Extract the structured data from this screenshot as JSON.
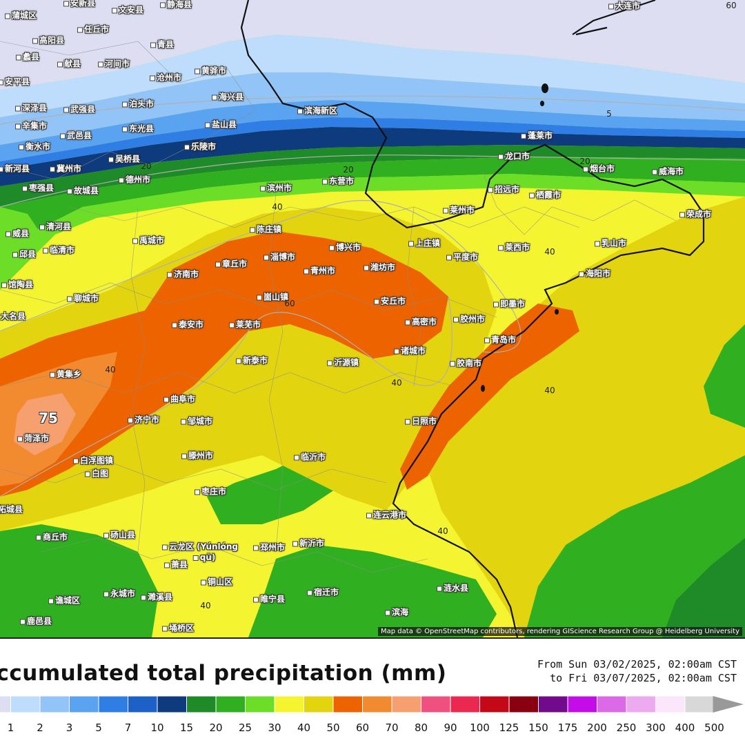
{
  "map": {
    "attribution": "Map data © OpenStreetMap contributors, rendering GIScience Research Group @ Heidelberg University",
    "max_label": "75",
    "cities": [
      {
        "name": "安新县"
      },
      {
        "name": "文安县"
      },
      {
        "name": "静海县"
      },
      {
        "name": "大连市"
      },
      {
        "name": "蒲城区"
      },
      {
        "name": "任丘市"
      },
      {
        "name": "高阳县"
      },
      {
        "name": "青县"
      },
      {
        "name": "蠡县"
      },
      {
        "name": "献县"
      },
      {
        "name": "河间市"
      },
      {
        "name": "黄骅市"
      },
      {
        "name": "安平县"
      },
      {
        "name": "沧州市"
      },
      {
        "name": "海兴县"
      },
      {
        "name": "深泽县"
      },
      {
        "name": "武强县"
      },
      {
        "name": "泊头市"
      },
      {
        "name": "辛集市"
      },
      {
        "name": "武邑县"
      },
      {
        "name": "东光县"
      },
      {
        "name": "盐山县"
      },
      {
        "name": "滨海新区"
      },
      {
        "name": "蓬莱市"
      },
      {
        "name": "衡水市"
      },
      {
        "name": "乐陵市"
      },
      {
        "name": "龙口市"
      },
      {
        "name": "吴桥县"
      },
      {
        "name": "新河县"
      },
      {
        "name": "冀州市"
      },
      {
        "name": "烟台市"
      },
      {
        "name": "威海市"
      },
      {
        "name": "枣强县"
      },
      {
        "name": "德州市"
      },
      {
        "name": "故城县"
      },
      {
        "name": "滨州市"
      },
      {
        "name": "东营市"
      },
      {
        "name": "招远市"
      },
      {
        "name": "栖霞市"
      },
      {
        "name": "莱州市"
      },
      {
        "name": "荣成市"
      },
      {
        "name": "威县"
      },
      {
        "name": "清河县"
      },
      {
        "name": "陈庄镇"
      },
      {
        "name": "邱县"
      },
      {
        "name": "临清市"
      },
      {
        "name": "禹城市"
      },
      {
        "name": "博兴市"
      },
      {
        "name": "上庄镇"
      },
      {
        "name": "莱西市"
      },
      {
        "name": "乳山市"
      },
      {
        "name": "济南市"
      },
      {
        "name": "章丘市"
      },
      {
        "name": "淄博市"
      },
      {
        "name": "青州市"
      },
      {
        "name": "潍坊市"
      },
      {
        "name": "平度市"
      },
      {
        "name": "馆陶县"
      },
      {
        "name": "海阳市"
      },
      {
        "name": "聊城市"
      },
      {
        "name": "崮山镇"
      },
      {
        "name": "安丘市"
      },
      {
        "name": "即墨市"
      },
      {
        "name": "大名县"
      },
      {
        "name": "泰安市"
      },
      {
        "name": "莱芜市"
      },
      {
        "name": "高密市"
      },
      {
        "name": "胶州市"
      },
      {
        "name": "青岛市"
      },
      {
        "name": "新泰市"
      },
      {
        "name": "沂源镇"
      },
      {
        "name": "诸城市"
      },
      {
        "name": "黄集乡"
      },
      {
        "name": "胶南市"
      },
      {
        "name": "曲阜市"
      },
      {
        "name": "济宁市"
      },
      {
        "name": "邹城市"
      },
      {
        "name": "日照市"
      },
      {
        "name": "菏泽市"
      },
      {
        "name": "滕州市"
      },
      {
        "name": "临沂市"
      },
      {
        "name": "白浮图镇"
      },
      {
        "name": "白图"
      },
      {
        "name": "枣庄市"
      },
      {
        "name": "连云港市"
      },
      {
        "name": "商丘市"
      },
      {
        "name": "砀山县"
      },
      {
        "name": "云龙区 (Yúnlóng"
      },
      {
        "name": "qū)"
      },
      {
        "name": "邳州市"
      },
      {
        "name": "新沂市"
      },
      {
        "name": "萧县"
      },
      {
        "name": "铜山区"
      },
      {
        "name": "永城市"
      },
      {
        "name": "濉溪县"
      },
      {
        "name": "睢宁县"
      },
      {
        "name": "宿迁市"
      },
      {
        "name": "涟水县"
      },
      {
        "name": "滨海"
      },
      {
        "name": "谯城区"
      },
      {
        "name": "鹿邑县"
      },
      {
        "name": "埇桥区"
      },
      {
        "name": "柘城县"
      }
    ],
    "contour_labels": [
      "5",
      "20",
      "20",
      "20",
      "40",
      "40",
      "40",
      "40",
      "40",
      "40",
      "40",
      "60",
      "60"
    ]
  },
  "legend": {
    "title": "Accumulated total precipitation (mm)",
    "from": "From Sun 03/02/2025, 02:00am CST",
    "to": "to Fri 03/07/2025, 02:00am CST",
    "tick_labels": [
      "1",
      "2",
      "3",
      "5",
      "7",
      "10",
      "15",
      "20",
      "25",
      "30",
      "40",
      "50",
      "60",
      "70",
      "80",
      "90",
      "100",
      "125",
      "150",
      "175",
      "200",
      "250",
      "300",
      "400",
      "500"
    ],
    "colors": [
      "#dedef2",
      "#bedcfb",
      "#93c4f7",
      "#5aa3f0",
      "#2e7ee6",
      "#1c60c8",
      "#0e3a7e",
      "#1e8a28",
      "#30b020",
      "#6cde28",
      "#f4f430",
      "#e3d410",
      "#ec6300",
      "#f28a30",
      "#f6a070",
      "#ee5080",
      "#ea2850",
      "#c40818",
      "#8a0010",
      "#720a8e",
      "#c30ce8",
      "#dc6ae6",
      "#eeaaee",
      "#fce6fc",
      "#d8d8d8"
    ]
  }
}
